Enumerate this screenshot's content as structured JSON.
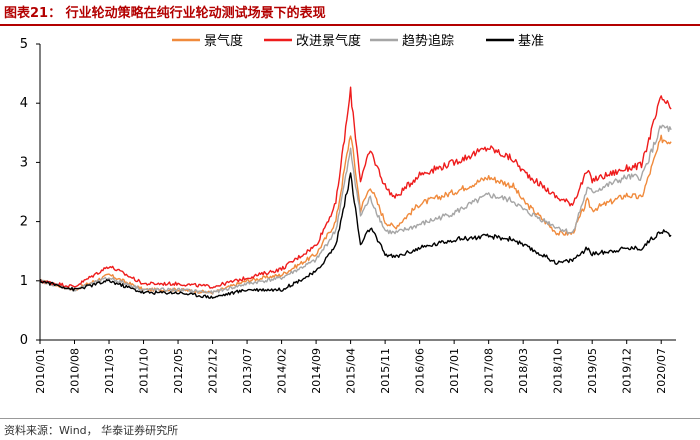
{
  "header": {
    "title": "图表21：  行业轮动策略在纯行业轮动测试场景下的表现"
  },
  "footer": {
    "source": "资料来源：Wind， 华泰证券研究所"
  },
  "colors": {
    "title": "#b30000",
    "orange": "#f08a3c",
    "red": "#ee1c1c",
    "gray": "#a6a6a6",
    "black": "#000000"
  },
  "chart_data": {
    "type": "line",
    "title": "",
    "xlabel": "",
    "ylabel": "",
    "ylim": [
      0,
      5
    ],
    "yticks": [
      0,
      1,
      2,
      3,
      4,
      5
    ],
    "xticks": [
      "2010/01",
      "2010/08",
      "2011/03",
      "2011/10",
      "2012/05",
      "2012/12",
      "2013/07",
      "2014/02",
      "2014/09",
      "2015/04",
      "2015/11",
      "2016/06",
      "2017/01",
      "2017/08",
      "2018/03",
      "2018/10",
      "2019/05",
      "2019/12",
      "2020/07"
    ],
    "legend_position": "top",
    "grid": false,
    "x": [
      "2010/01",
      "2010/08",
      "2011/03",
      "2011/10",
      "2012/05",
      "2012/12",
      "2013/07",
      "2014/02",
      "2014/09",
      "2015/01",
      "2015/04",
      "2015/06",
      "2015/08",
      "2015/11",
      "2016/01",
      "2016/06",
      "2017/01",
      "2017/08",
      "2018/01",
      "2018/03",
      "2018/10",
      "2019/01",
      "2019/04",
      "2019/05",
      "2019/12",
      "2020/03",
      "2020/07",
      "2020/09"
    ],
    "series": [
      {
        "name": "景气度",
        "color": "#f08a3c",
        "values": [
          1.0,
          0.85,
          1.1,
          0.85,
          0.85,
          0.8,
          1.0,
          1.1,
          1.45,
          2.0,
          3.5,
          2.2,
          2.6,
          2.0,
          1.9,
          2.3,
          2.5,
          2.75,
          2.6,
          2.35,
          1.8,
          1.8,
          2.35,
          2.2,
          2.45,
          2.4,
          3.4,
          3.35
        ]
      },
      {
        "name": "改进景气度",
        "color": "#ee1c1c",
        "values": [
          1.0,
          0.9,
          1.25,
          0.95,
          0.95,
          0.9,
          1.05,
          1.2,
          1.6,
          2.3,
          4.2,
          2.7,
          3.2,
          2.6,
          2.4,
          2.8,
          3.0,
          3.25,
          3.05,
          2.85,
          2.4,
          2.3,
          2.85,
          2.7,
          2.9,
          2.95,
          4.1,
          3.9
        ]
      },
      {
        "name": "趋势追踪",
        "color": "#a6a6a6",
        "values": [
          1.0,
          0.85,
          1.05,
          0.85,
          0.85,
          0.8,
          0.95,
          1.05,
          1.35,
          1.85,
          3.2,
          2.1,
          2.4,
          1.85,
          1.8,
          1.95,
          2.15,
          2.45,
          2.35,
          2.2,
          1.9,
          1.8,
          2.55,
          2.5,
          2.75,
          2.75,
          3.6,
          3.55
        ]
      },
      {
        "name": "基准",
        "color": "#000000",
        "values": [
          1.0,
          0.85,
          1.0,
          0.8,
          0.8,
          0.72,
          0.85,
          0.85,
          1.15,
          1.6,
          2.8,
          1.6,
          1.9,
          1.45,
          1.4,
          1.55,
          1.7,
          1.75,
          1.7,
          1.6,
          1.3,
          1.35,
          1.55,
          1.45,
          1.55,
          1.55,
          1.85,
          1.77
        ]
      }
    ]
  }
}
